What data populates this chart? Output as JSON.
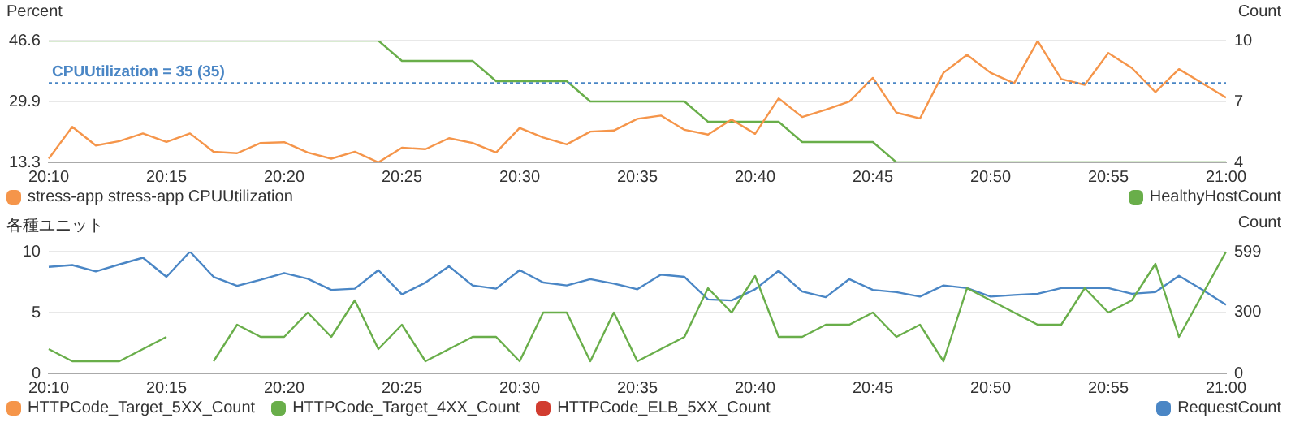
{
  "chart_data": [
    {
      "type": "line",
      "ylabel": "Percent",
      "y2label": "Count",
      "categories": [
        "20:10",
        null,
        null,
        null,
        null,
        "20:15",
        null,
        null,
        null,
        null,
        "20:20",
        null,
        null,
        null,
        null,
        "20:25",
        null,
        null,
        null,
        null,
        "20:30",
        null,
        null,
        null,
        null,
        "20:35",
        null,
        null,
        null,
        null,
        "20:40",
        null,
        null,
        null,
        null,
        "20:45",
        null,
        null,
        null,
        null,
        "20:50",
        null,
        null,
        null,
        null,
        "20:55",
        null,
        null,
        null,
        null,
        "21:00"
      ],
      "series": [
        {
          "name": "stress-app stress-app CPUUtilization",
          "color": "#f5954a",
          "values": [
            14.3,
            23.0,
            17.9,
            19.1,
            21.2,
            18.9,
            21.2,
            16.2,
            15.8,
            18.6,
            18.8,
            16.0,
            14.3,
            16.2,
            13.3,
            17.3,
            16.9,
            19.9,
            18.6,
            16.0,
            22.7,
            20.1,
            18.2,
            21.7,
            22.0,
            25.2,
            26.1,
            22.2,
            20.9,
            25.0,
            21.1,
            30.8,
            25.7,
            27.7,
            29.9,
            36.4,
            26.9,
            25.3,
            37.8,
            42.7,
            37.8,
            34.9,
            46.5,
            36.1,
            34.5,
            43.2,
            39.1,
            32.5,
            38.8,
            34.9,
            31.0
          ]
        },
        {
          "name": "HealthyHostCount",
          "color": "#69ae4a",
          "axis": "y2",
          "values": [
            10,
            10,
            10,
            10,
            10,
            10,
            10,
            10,
            10,
            10,
            10,
            10,
            10,
            10,
            10,
            9,
            9,
            9,
            9,
            8,
            8,
            8,
            8,
            7,
            7,
            7,
            7,
            7,
            6,
            6,
            6,
            6,
            5,
            5,
            5,
            5,
            4,
            4,
            4,
            4,
            4,
            4,
            4,
            4,
            4,
            4,
            4,
            4,
            4,
            4,
            4
          ]
        }
      ],
      "ylim": [
        13.3,
        46.6
      ],
      "yticks": [
        13.3,
        29.9,
        46.6
      ],
      "y2lim": [
        4,
        10
      ],
      "y2ticks": [
        4,
        7,
        10
      ],
      "ref_lines": [
        {
          "axis": "y",
          "value": 35,
          "label": "CPUUtilization = 35 (35)",
          "color": "#4a86c5",
          "line_style": "dotted"
        }
      ],
      "grid": "y",
      "legend": "bottom",
      "marker": "none",
      "line_style": "solid"
    },
    {
      "type": "line",
      "ylabel": "各種ユニット",
      "y2label": "Count",
      "categories": [
        "20:10",
        null,
        null,
        null,
        null,
        "20:15",
        null,
        null,
        null,
        null,
        "20:20",
        null,
        null,
        null,
        null,
        "20:25",
        null,
        null,
        null,
        null,
        "20:30",
        null,
        null,
        null,
        null,
        "20:35",
        null,
        null,
        null,
        null,
        "20:40",
        null,
        null,
        null,
        null,
        "20:45",
        null,
        null,
        null,
        null,
        "20:50",
        null,
        null,
        null,
        null,
        "20:55",
        null,
        null,
        null,
        null,
        "21:00"
      ],
      "series": [
        {
          "name": "HTTPCode_Target_5XX_Count",
          "color": "#f5954a",
          "values": [
            null,
            null,
            null,
            null,
            null,
            null,
            null,
            null,
            null,
            null,
            null,
            null,
            null,
            null,
            null,
            null,
            null,
            null,
            null,
            null,
            null,
            null,
            null,
            null,
            null,
            null,
            null,
            null,
            null,
            null,
            null,
            null,
            null,
            null,
            null,
            null,
            null,
            null,
            null,
            null,
            null,
            null,
            null,
            null,
            null,
            null,
            null,
            null,
            null,
            null,
            null
          ]
        },
        {
          "name": "HTTPCode_Target_4XX_Count",
          "color": "#69ae4a",
          "values": [
            2,
            1,
            1,
            1,
            2,
            3,
            null,
            1,
            4,
            3,
            3,
            5,
            3,
            6,
            2,
            4,
            1,
            2,
            3,
            3,
            1,
            5,
            5,
            1,
            5,
            1,
            2,
            3,
            7,
            5,
            8,
            3,
            3,
            4,
            4,
            5,
            3,
            4,
            1,
            7,
            6,
            5,
            4,
            4,
            7,
            5,
            6,
            9,
            3,
            6.5,
            10
          ]
        },
        {
          "name": "HTTPCode_ELB_5XX_Count",
          "color": "#d13c2f",
          "values": [
            null,
            null,
            null,
            null,
            null,
            null,
            null,
            null,
            null,
            null,
            null,
            null,
            null,
            null,
            null,
            null,
            null,
            null,
            null,
            null,
            null,
            null,
            null,
            null,
            null,
            null,
            null,
            null,
            null,
            null,
            null,
            null,
            null,
            null,
            null,
            null,
            null,
            null,
            null,
            null,
            null,
            null,
            null,
            null,
            null,
            null,
            null,
            null,
            null,
            null,
            null
          ]
        },
        {
          "name": "RequestCount",
          "color": "#4a86c5",
          "axis": "y2",
          "values": [
            524,
            533,
            502,
            536,
            569,
            475,
            599,
            475,
            431,
            461,
            494,
            466,
            411,
            417,
            508,
            389,
            447,
            527,
            433,
            417,
            508,
            447,
            433,
            464,
            442,
            414,
            486,
            475,
            364,
            359,
            414,
            505,
            403,
            375,
            464,
            411,
            400,
            378,
            433,
            420,
            378,
            386,
            392,
            420,
            420,
            420,
            392,
            400,
            480,
            411,
            337
          ]
        }
      ],
      "ylim": [
        0,
        10
      ],
      "yticks": [
        0,
        5,
        10
      ],
      "y2lim": [
        0,
        599
      ],
      "y2ticks": [
        0,
        300,
        599
      ],
      "grid": "y",
      "legend": "bottom",
      "marker": "none",
      "line_style": "solid"
    }
  ]
}
